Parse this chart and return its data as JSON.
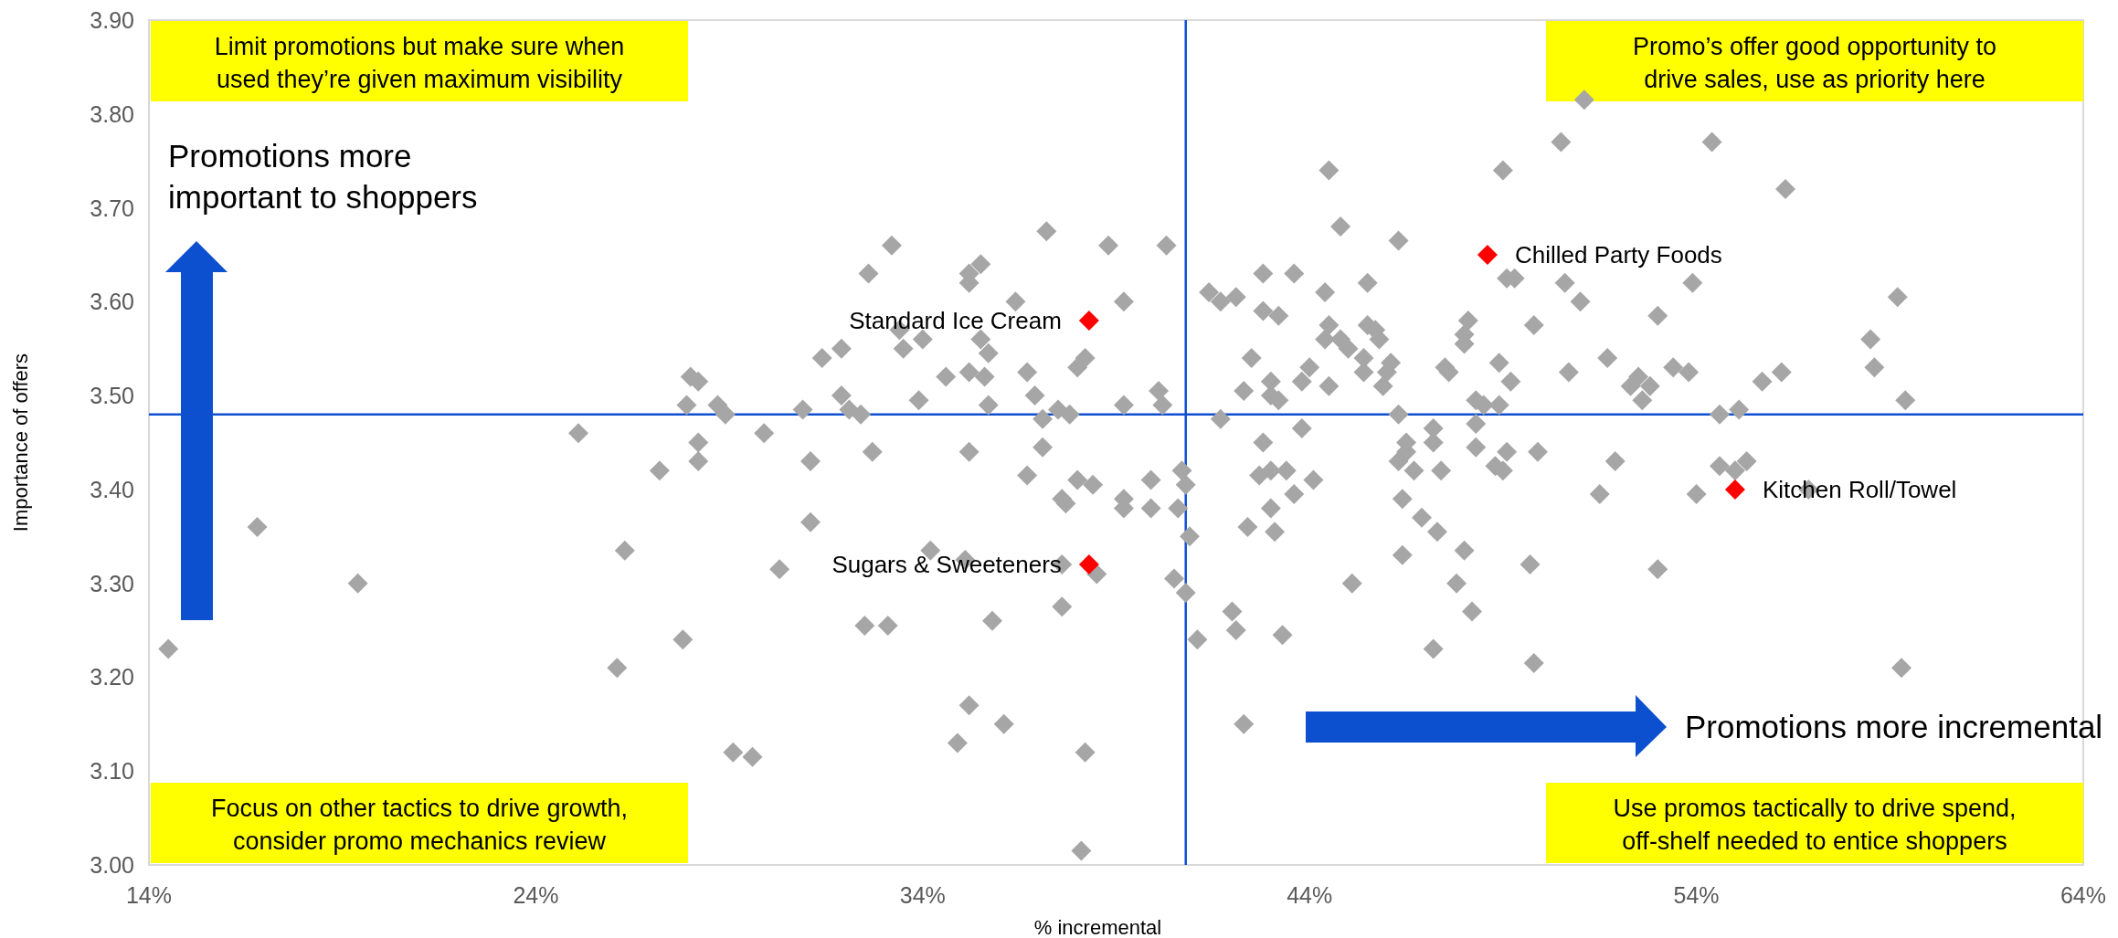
{
  "chart_data": {
    "type": "scatter",
    "xlabel": "% incremental",
    "ylabel": "Importance of offers",
    "xlim": [
      14,
      64
    ],
    "ylim": [
      3.0,
      3.9
    ],
    "xticks": [
      {
        "value": 14,
        "label": "14%"
      },
      {
        "value": 24,
        "label": "24%"
      },
      {
        "value": 34,
        "label": "34%"
      },
      {
        "value": 44,
        "label": "44%"
      },
      {
        "value": 54,
        "label": "54%"
      },
      {
        "value": 64,
        "label": "64%"
      }
    ],
    "yticks": [
      {
        "value": 3.0,
        "label": "3.00"
      },
      {
        "value": 3.1,
        "label": "3.10"
      },
      {
        "value": 3.2,
        "label": "3.20"
      },
      {
        "value": 3.3,
        "label": "3.30"
      },
      {
        "value": 3.4,
        "label": "3.40"
      },
      {
        "value": 3.5,
        "label": "3.50"
      },
      {
        "value": 3.6,
        "label": "3.60"
      },
      {
        "value": 3.7,
        "label": "3.70"
      },
      {
        "value": 3.8,
        "label": "3.80"
      },
      {
        "value": 3.9,
        "label": "3.90"
      }
    ],
    "marker": "diamond",
    "series": [
      {
        "color": "#a6a6a6",
        "x": [
          14.5,
          16.8,
          19.4,
          25.1,
          26.3,
          26.1,
          27.8,
          27.2,
          28.0,
          28.2,
          27.9,
          28.7,
          28.9,
          29.9,
          28.2,
          28.2,
          29.1,
          29.6,
          30.3,
          31.1,
          31.1,
          30.9,
          31.4,
          31.9,
          32.6,
          33.2,
          31.9,
          32.1,
          32.4,
          32.7,
          32.5,
          33.1,
          33.4,
          34.0,
          33.5,
          33.9,
          34.2,
          34.6,
          35.2,
          35.5,
          35.2,
          35.5,
          35.7,
          35.2,
          35.6,
          35.7,
          35.2,
          35.1,
          35.8,
          35.2,
          36.1,
          34.9,
          36.4,
          36.7,
          36.9,
          37.1,
          37.5,
          37.8,
          37.1,
          36.7,
          37.2,
          38.0,
          38.4,
          37.6,
          37.7,
          37.6,
          38.5,
          37.6,
          38.2,
          38.1,
          38.2,
          38.0,
          38.8,
          39.2,
          39.2,
          39.2,
          39.2,
          39.9,
          39.9,
          40.3,
          40.1,
          40.2,
          40.6,
          40.7,
          40.8,
          40.5,
          40.8,
          40.9,
          41.1,
          41.4,
          41.7,
          42.1,
          42.8,
          43.6,
          42.8,
          43.2,
          42.5,
          42.3,
          43.0,
          43.0,
          43.2,
          41.7,
          43.8,
          42.8,
          43.8,
          44.0,
          44.4,
          44.5,
          44.4,
          44.8,
          45.0,
          44.5,
          44.5,
          44.8,
          45.5,
          45.5,
          45.7,
          45.8,
          45.4,
          45.4,
          46.0,
          45.9,
          46.1,
          46.3,
          46.3,
          46.5,
          46.5,
          42.7,
          43.0,
          43.4,
          43.6,
          44.1,
          43.0,
          42.4,
          43.1,
          42.0,
          42.1,
          43.3,
          42.3,
          45.1,
          46.3,
          46.7,
          46.4,
          46.9,
          46.4,
          47.2,
          47.2,
          47.2,
          47.4,
          47.3,
          47.5,
          47.6,
          48.0,
          48.0,
          48.1,
          48.3,
          48.5,
          48.9,
          48.3,
          48.3,
          48.8,
          49.0,
          48.0,
          47.8,
          48.2,
          49.1,
          49.9,
          49.7,
          49.8,
          48.9,
          49.2,
          49.1,
          49.3,
          49.0,
          49.8,
          50.5,
          50.6,
          51.0,
          51.1,
          50.7,
          51.7,
          51.9,
          51.5,
          52.5,
          52.3,
          52.8,
          52.6,
          53.0,
          53.4,
          53.8,
          53.9,
          53.0,
          54.0,
          54.4,
          54.6,
          55.1,
          54.6,
          55.0,
          55.3,
          55.7,
          56.2,
          56.3,
          56.9,
          58.5,
          58.6,
          59.2,
          59.4,
          59.3
        ],
        "values": [
          3.23,
          3.36,
          3.3,
          3.46,
          3.335,
          3.21,
          3.24,
          3.42,
          3.52,
          3.515,
          3.49,
          3.49,
          3.48,
          3.46,
          3.45,
          3.43,
          3.12,
          3.115,
          3.315,
          3.365,
          3.43,
          3.485,
          3.54,
          3.55,
          3.63,
          3.66,
          3.5,
          3.485,
          3.48,
          3.44,
          3.255,
          3.255,
          3.57,
          3.56,
          3.55,
          3.495,
          3.335,
          3.52,
          3.63,
          3.64,
          3.62,
          3.56,
          3.545,
          3.525,
          3.52,
          3.49,
          3.44,
          3.325,
          3.26,
          3.17,
          3.15,
          3.13,
          3.6,
          3.525,
          3.5,
          3.475,
          3.485,
          3.48,
          3.445,
          3.415,
          3.675,
          3.41,
          3.405,
          3.39,
          3.385,
          3.32,
          3.31,
          3.275,
          3.12,
          3.015,
          3.54,
          3.53,
          3.66,
          3.6,
          3.49,
          3.39,
          3.38,
          3.41,
          3.38,
          3.66,
          3.505,
          3.49,
          3.38,
          3.42,
          3.405,
          3.305,
          3.29,
          3.35,
          3.24,
          3.61,
          3.6,
          3.605,
          3.63,
          3.63,
          3.59,
          3.585,
          3.54,
          3.505,
          3.515,
          3.5,
          3.495,
          3.475,
          3.465,
          3.45,
          3.515,
          3.53,
          3.61,
          3.575,
          3.56,
          3.56,
          3.55,
          3.51,
          3.74,
          3.68,
          3.62,
          3.575,
          3.57,
          3.56,
          3.54,
          3.525,
          3.525,
          3.51,
          3.535,
          3.665,
          3.48,
          3.45,
          3.44,
          3.415,
          3.42,
          3.42,
          3.395,
          3.41,
          3.38,
          3.36,
          3.355,
          3.27,
          3.25,
          3.245,
          3.15,
          3.3,
          3.43,
          3.42,
          3.39,
          3.37,
          3.33,
          3.23,
          3.465,
          3.45,
          3.42,
          3.355,
          3.53,
          3.525,
          3.565,
          3.555,
          3.58,
          3.495,
          3.49,
          3.49,
          3.47,
          3.445,
          3.425,
          3.42,
          3.335,
          3.3,
          3.27,
          3.44,
          3.44,
          3.32,
          3.215,
          3.535,
          3.515,
          3.625,
          3.625,
          3.74,
          3.575,
          3.77,
          3.62,
          3.6,
          3.815,
          3.525,
          3.54,
          3.43,
          3.395,
          3.52,
          3.51,
          3.51,
          3.495,
          3.585,
          3.53,
          3.525,
          3.62,
          3.315,
          3.395,
          3.77,
          3.48,
          3.485,
          3.425,
          3.42,
          3.43,
          3.515,
          3.525,
          3.72,
          3.4,
          3.56,
          3.53,
          3.605,
          3.495,
          3.21
        ]
      },
      {
        "color": "#ff0000",
        "x": [
          38.3,
          38.3,
          48.6,
          55.0
        ],
        "values": [
          3.58,
          3.32,
          3.65,
          3.4
        ]
      }
    ],
    "ref_lines": [
      {
        "axis": "x",
        "value": 40.8,
        "color": "#0f4fd1"
      },
      {
        "axis": "y",
        "value": 3.48,
        "color": "#0f4fd1"
      }
    ],
    "annotations": [
      "Limit promotions but make sure when used they’re given maximum visibility",
      "Promo’s offer good opportunity to drive sales, use as priority here",
      "Focus on other tactics to drive growth, consider promo mechanics review",
      "Use promos tactically to drive spend, off-shelf needed to entice shoppers",
      "Promotions more important to shoppers",
      "Promotions more incremental",
      {
        "text": "Standard Ice Cream",
        "x": 38.3,
        "y": 3.58
      },
      {
        "text": "Sugars & Sweeteners",
        "x": 38.3,
        "y": 3.32
      },
      {
        "text": "Chilled Party Foods",
        "x": 48.6,
        "y": 3.65
      },
      {
        "text": "Kitchen Roll/Towel",
        "x": 55.0,
        "y": 3.4
      }
    ]
  }
}
